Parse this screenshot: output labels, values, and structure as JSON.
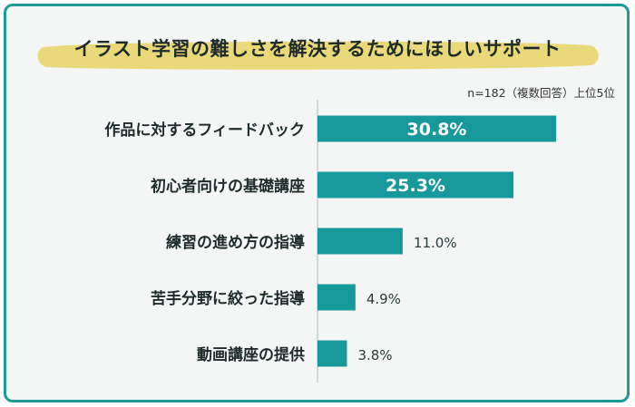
{
  "title": "イラスト学習の難しさを解決するためにほしいサポート",
  "note": "n=182（複数回答）上位5位",
  "colors": {
    "bar": "#17999b",
    "frame": "#1e9a9a",
    "title_highlight": "#e9d979",
    "label_text": "#1f2a2a",
    "value_inside": "#ffffff",
    "value_outside": "#2b3a3a"
  },
  "chart_data": {
    "type": "bar",
    "orientation": "horizontal",
    "categories": [
      "作品に対するフィードバック",
      "初心者向けの基礎講座",
      "練習の進め方の指導",
      "苦手分野に絞った指導",
      "動画講座の提供"
    ],
    "values": [
      30.8,
      25.3,
      11.0,
      4.9,
      3.8
    ],
    "value_labels": [
      "30.8%",
      "25.3%",
      "11.0%",
      "4.9%",
      "3.8%"
    ],
    "unit": "%",
    "xlim": [
      0,
      40
    ],
    "grid": false,
    "legend": "none"
  }
}
